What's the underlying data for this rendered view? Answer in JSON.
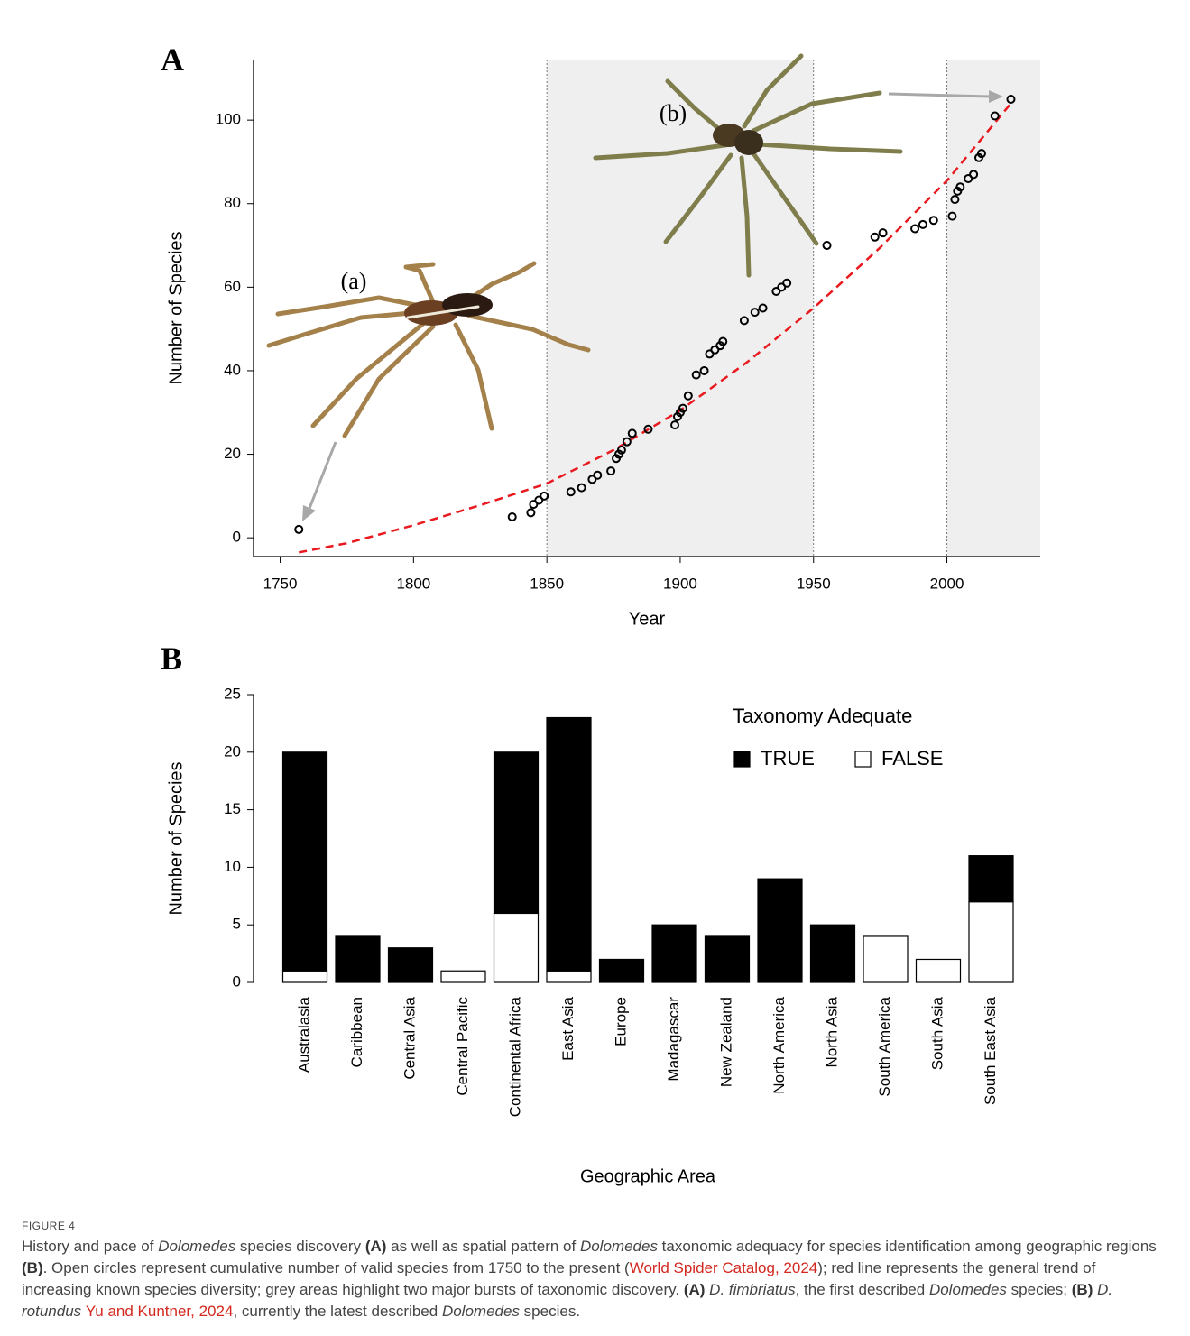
{
  "chart_data": [
    {
      "panel": "A",
      "type": "scatter",
      "x_label": "Year",
      "y_label": "Number of Species",
      "x": [
        1757,
        1837,
        1844,
        1845,
        1847,
        1849,
        1859,
        1863,
        1867,
        1869,
        1874,
        1876,
        1877,
        1878,
        1880,
        1882,
        1888,
        1898,
        1899,
        1900,
        1901,
        1903,
        1906,
        1909,
        1911,
        1913,
        1915,
        1916,
        1924,
        1928,
        1931,
        1936,
        1938,
        1940,
        1955,
        1973,
        1976,
        1988,
        1991,
        1995,
        2002,
        2003,
        2004,
        2005,
        2008,
        2010,
        2012,
        2013,
        2018,
        2024
      ],
      "values": [
        2,
        5,
        6,
        8,
        9,
        10,
        11,
        12,
        14,
        15,
        16,
        19,
        20,
        21,
        23,
        25,
        26,
        27,
        29,
        30,
        31,
        34,
        39,
        40,
        44,
        45,
        46,
        47,
        52,
        54,
        55,
        59,
        60,
        61,
        70,
        72,
        73,
        74,
        75,
        76,
        77,
        81,
        83,
        84,
        86,
        87,
        91,
        92,
        101,
        105
      ],
      "color": "#000000",
      "trend": {
        "x": [
          1757,
          1775,
          1800,
          1825,
          1850,
          1875,
          1900,
          1925,
          1950,
          1975,
          2000,
          2024
        ],
        "values": [
          -3.5,
          -1.3,
          3,
          7.8,
          13,
          21,
          30.5,
          42,
          55,
          69.5,
          85.5,
          104
        ],
        "color": "#e8191f"
      },
      "shaded": [
        [
          1850,
          1950
        ],
        [
          2000,
          2035
        ]
      ],
      "annotations": [
        "(a)",
        "(b)"
      ],
      "xlim": [
        1740,
        2035
      ],
      "ylim": [
        -4.5,
        114.5
      ],
      "xticks": [
        1750,
        1800,
        1850,
        1900,
        1950,
        2000
      ],
      "yticks": [
        0,
        20,
        40,
        60,
        80,
        100
      ]
    },
    {
      "panel": "B",
      "type": "bar",
      "stacked": true,
      "x_label": "Geographic Area",
      "y_label": "Number of Species",
      "legend_title": "Taxonomy Adequate",
      "legend": "top-right",
      "categories": [
        "Australasia",
        "Caribbean",
        "Central Asia",
        "Central Pacific",
        "Continental Africa",
        "East Asia",
        "Europe",
        "Madagascar",
        "New Zealand",
        "North America",
        "North Asia",
        "South America",
        "South Asia",
        "South East Asia"
      ],
      "series": [
        {
          "name": "TRUE",
          "color": "#000000",
          "values": [
            19,
            4,
            3,
            0,
            14,
            22,
            2,
            5,
            4,
            9,
            5,
            0,
            0,
            4
          ]
        },
        {
          "name": "FALSE",
          "color": "#ffffff",
          "values": [
            1,
            0,
            0,
            1,
            6,
            1,
            0,
            0,
            0,
            0,
            0,
            4,
            2,
            7
          ]
        }
      ],
      "ylim": [
        0,
        25
      ],
      "yticks": [
        0,
        5,
        10,
        15,
        20,
        25
      ]
    }
  ],
  "caption": {
    "label": "FIGURE 4",
    "parts": [
      "History and pace of ",
      "Dolomedes",
      " species discovery ",
      "(A)",
      " as well as spatial pattern of ",
      "Dolomedes",
      " taxonomic adequacy for species identification among geographic regions ",
      "(B)",
      ". Open circles represent cumulative number of valid species from 1750 to the present (",
      "World Spider Catalog, 2024",
      "); red line represents the general trend of increasing known species diversity; grey areas highlight two major bursts of taxonomic discovery. ",
      "(A) ",
      "D. fimbriatus",
      ", the first described ",
      "Dolomedes",
      " species; ",
      "(B) ",
      "D. rotundus ",
      "Yu and Kuntner, 2024",
      ", currently the latest described ",
      "Dolomedes",
      " species."
    ]
  }
}
